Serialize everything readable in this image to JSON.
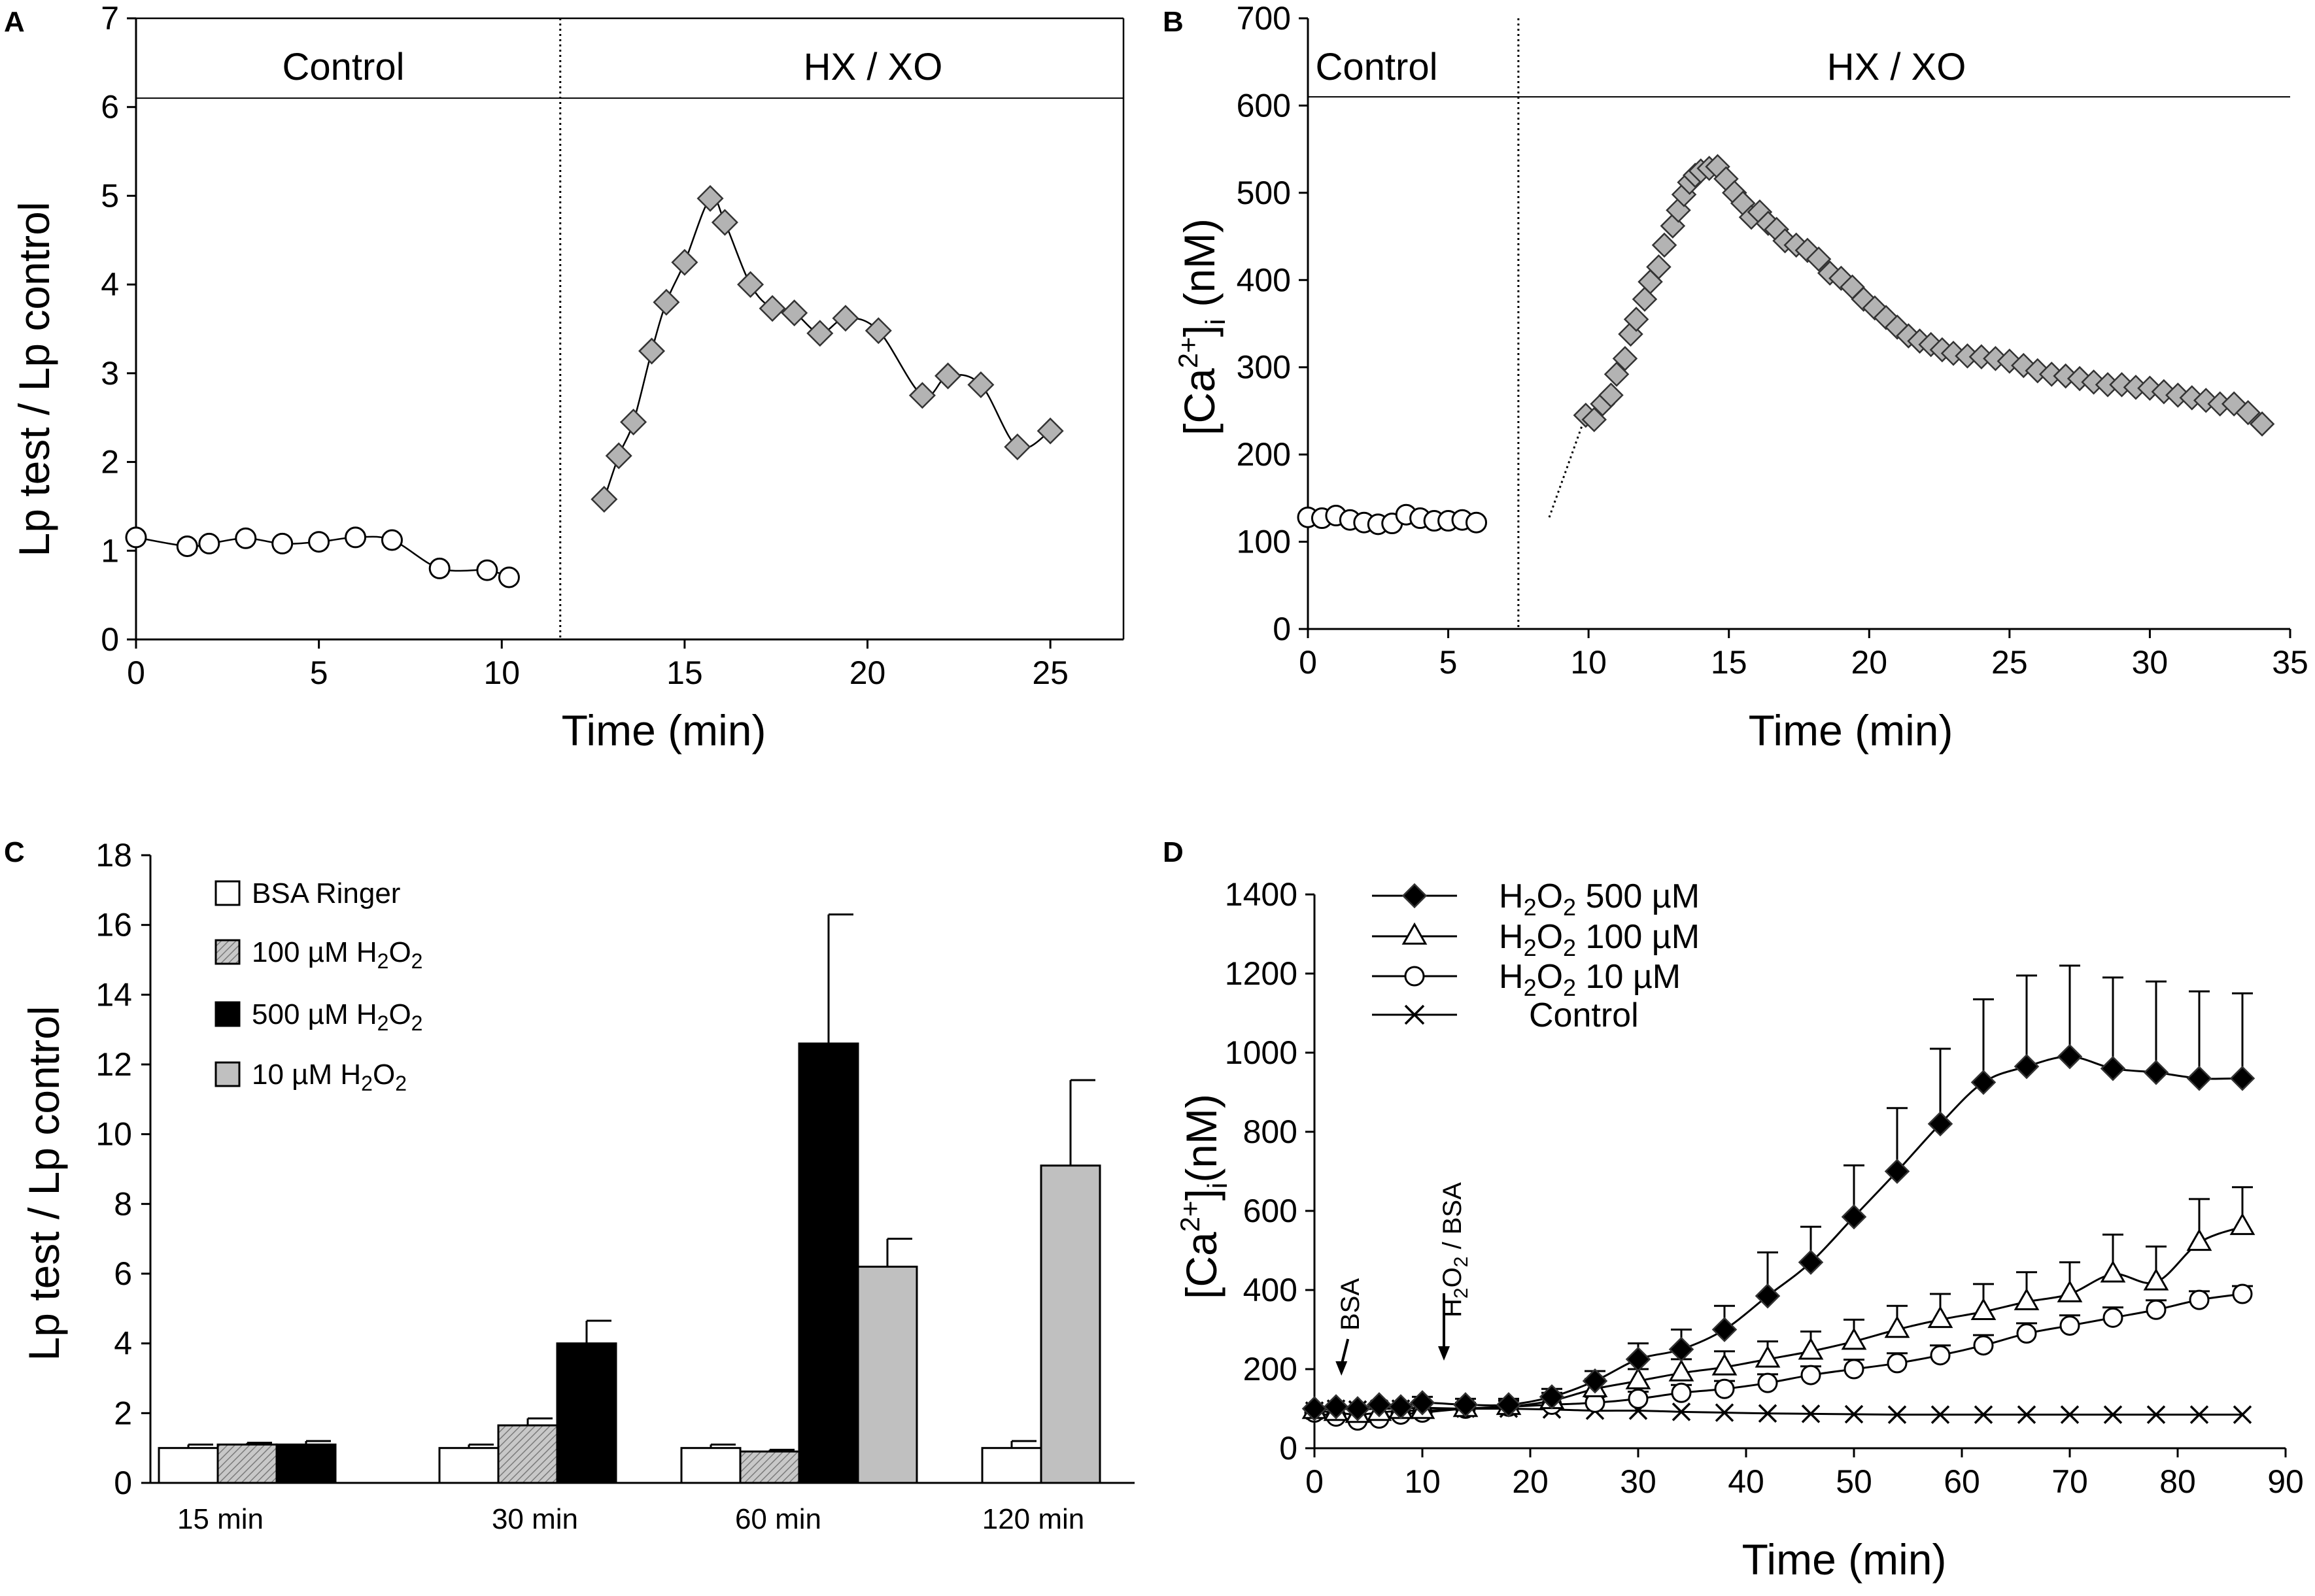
{
  "chart_data": [
    {
      "id": "A",
      "panel": "A",
      "type": "line",
      "xlabel": "Time (min)",
      "ylabel": "Lp test / Lp control",
      "xlim": [
        0,
        27
      ],
      "ylim": [
        0,
        7
      ],
      "xticks": [
        0,
        5,
        10,
        15,
        20,
        25
      ],
      "yticks": [
        0,
        1,
        2,
        3,
        4,
        5,
        6,
        7
      ],
      "divider_x": 11.6,
      "band_y": 6.1,
      "band_labels": {
        "left": "Control",
        "right": "HX / XO"
      },
      "series": [
        {
          "name": "Control",
          "marker": "circle",
          "x": [
            0,
            1.4,
            2,
            3,
            4,
            5,
            6,
            7,
            8.3,
            9.6,
            10.2
          ],
          "y": [
            1.15,
            1.05,
            1.08,
            1.14,
            1.08,
            1.1,
            1.15,
            1.12,
            0.8,
            0.78,
            0.7
          ]
        },
        {
          "name": "HX / XO",
          "marker": "diamond",
          "x": [
            12.8,
            13.2,
            13.6,
            14.1,
            14.5,
            15,
            15.7,
            16.1,
            16.8,
            17.4,
            18,
            18.7,
            19.4,
            20.3,
            21.5,
            22.2,
            23.1,
            24.1,
            25
          ],
          "y": [
            1.58,
            2.07,
            2.45,
            3.25,
            3.8,
            4.25,
            4.97,
            4.7,
            4.0,
            3.73,
            3.68,
            3.45,
            3.62,
            3.48,
            2.75,
            2.97,
            2.87,
            2.17,
            2.35
          ]
        }
      ]
    },
    {
      "id": "B",
      "panel": "B",
      "type": "line",
      "xlabel": "Time (min)",
      "ylabel_main": "[Ca",
      "ylabel_sup": "2+",
      "ylabel_close": "]",
      "ylabel_sub": "i",
      "ylabel_unit": "(nM)",
      "xlim": [
        0,
        35
      ],
      "ylim": [
        0,
        700
      ],
      "xticks": [
        0,
        5,
        10,
        15,
        20,
        25,
        30,
        35
      ],
      "yticks": [
        0,
        100,
        200,
        300,
        400,
        500,
        600,
        700
      ],
      "divider_x": 7.5,
      "band_y": 610,
      "band_labels": {
        "left": "Control",
        "right": "HX / XO"
      },
      "dotted_segment": {
        "x": [
          8.6,
          9.9
        ],
        "y": [
          128,
          245
        ]
      },
      "series": [
        {
          "name": "Control",
          "marker": "circle",
          "x": [
            0,
            0.5,
            1,
            1.5,
            2,
            2.5,
            3,
            3.5,
            4,
            4.5,
            5,
            5.5,
            6
          ],
          "y": [
            128,
            127,
            130,
            125,
            122,
            120,
            121,
            131,
            127,
            124,
            124,
            125,
            122
          ]
        },
        {
          "name": "HX / XO",
          "marker": "diamond",
          "x": [
            9.9,
            10.2,
            10.5,
            10.8,
            11.0,
            11.3,
            11.5,
            11.7,
            12.0,
            12.2,
            12.5,
            12.7,
            13.0,
            13.2,
            13.4,
            13.6,
            13.8,
            14.0,
            14.3,
            14.6,
            14.9,
            15.2,
            15.5,
            15.8,
            16.1,
            16.4,
            16.7,
            17.0,
            17.4,
            17.8,
            18.2,
            18.6,
            19.0,
            19.4,
            19.8,
            20.2,
            20.6,
            21.0,
            21.4,
            21.8,
            22.2,
            22.6,
            23.0,
            23.5,
            24.0,
            24.5,
            25.0,
            25.5,
            26.0,
            26.5,
            27.0,
            27.5,
            28.0,
            28.5,
            29.0,
            29.5,
            30.0,
            30.5,
            31.0,
            31.5,
            32.0,
            32.5,
            33.0,
            33.5,
            34.0
          ],
          "y": [
            245,
            240,
            258,
            268,
            292,
            310,
            338,
            355,
            378,
            398,
            415,
            440,
            462,
            480,
            498,
            512,
            520,
            525,
            528,
            530,
            516,
            500,
            488,
            472,
            478,
            465,
            458,
            445,
            440,
            434,
            424,
            408,
            402,
            392,
            378,
            368,
            357,
            346,
            336,
            330,
            326,
            320,
            316,
            313,
            312,
            310,
            307,
            302,
            296,
            292,
            290,
            287,
            283,
            280,
            280,
            277,
            276,
            272,
            268,
            265,
            262,
            258,
            258,
            248,
            235
          ]
        }
      ]
    },
    {
      "id": "C",
      "panel": "C",
      "type": "bar",
      "ylabel": "Lp test / Lp control",
      "ylim": [
        0,
        18
      ],
      "yticks": [
        0,
        2,
        4,
        6,
        8,
        10,
        12,
        14,
        16,
        18
      ],
      "categories": [
        "15 min",
        "30 min",
        "60 min",
        "120 min"
      ],
      "series": [
        {
          "name": "BSA Ringer",
          "label_main": "BSA Ringer",
          "label_sub": "",
          "fill": "#ffffff",
          "values": [
            1.0,
            1.0,
            1.0,
            1.0
          ],
          "errors": [
            0.1,
            0.1,
            0.1,
            0.2
          ]
        },
        {
          "name": "100 µM H2O2",
          "label_main": "100 µM H",
          "label_sub": "2",
          "label_mid": "O",
          "label_sub2": "2",
          "fill": "hatch",
          "values": [
            1.1,
            1.65,
            0.9,
            null
          ],
          "errors": [
            0.05,
            0.2,
            0.05,
            null
          ]
        },
        {
          "name": "500 µM H2O2",
          "label_main": "500 µM H",
          "label_sub": "2",
          "label_mid": "O",
          "label_sub2": "2",
          "fill": "#000000",
          "values": [
            1.1,
            4.0,
            12.6,
            null
          ],
          "errors": [
            0.1,
            0.65,
            3.7,
            null
          ]
        },
        {
          "name": "10 µM H2O2",
          "label_main": "10 µM H",
          "label_sub": "2",
          "label_mid": "O",
          "label_sub2": "2",
          "fill": "#c0c0c0",
          "values": [
            null,
            null,
            6.2,
            9.1
          ],
          "errors": [
            null,
            null,
            0.8,
            2.45
          ]
        }
      ]
    },
    {
      "id": "D",
      "panel": "D",
      "type": "line",
      "xlabel": "Time (min)",
      "ylabel_main": "[Ca",
      "ylabel_sup": "2+",
      "ylabel_close": "]",
      "ylabel_sub": "i",
      "ylabel_unit": "(nM)",
      "xlim": [
        0,
        90
      ],
      "ylim": [
        0,
        1400
      ],
      "xticks": [
        0,
        10,
        20,
        30,
        40,
        50,
        60,
        70,
        80,
        90
      ],
      "yticks": [
        0,
        200,
        400,
        600,
        800,
        1000,
        1200,
        1400
      ],
      "annotations": [
        {
          "text": "BSA",
          "x": 2.5
        },
        {
          "text_main": "H",
          "text_sub": "2",
          "text_mid": "O",
          "text_sub2": "2",
          "text_rest": " / BSA",
          "x": 12
        }
      ],
      "x": [
        0,
        2,
        4,
        6,
        8,
        10,
        14,
        18,
        22,
        26,
        30,
        34,
        38,
        42,
        46,
        50,
        54,
        58,
        62,
        66,
        70,
        74,
        78,
        82,
        86
      ],
      "series": [
        {
          "name": "H2O2 500 µM",
          "label_main": "H",
          "label_sub": "2",
          "label_mid": "O",
          "label_sub2": "2",
          "label_rest": " 500 µM",
          "marker": "diamond-filled",
          "values": [
            100,
            105,
            100,
            110,
            105,
            115,
            110,
            110,
            130,
            170,
            225,
            250,
            300,
            385,
            470,
            585,
            700,
            820,
            925,
            965,
            990,
            960,
            950,
            935,
            935
          ],
          "errors": [
            10,
            10,
            10,
            10,
            10,
            15,
            15,
            15,
            20,
            25,
            40,
            50,
            60,
            110,
            90,
            130,
            160,
            190,
            210,
            230,
            230,
            230,
            230,
            220,
            215
          ]
        },
        {
          "name": "H2O2 100 µM",
          "label_main": "H",
          "label_sub": "2",
          "label_mid": "O",
          "label_sub2": "2",
          "label_rest": " 100 µM",
          "marker": "triangle",
          "values": [
            95,
            90,
            85,
            90,
            95,
            95,
            100,
            105,
            120,
            150,
            170,
            190,
            205,
            225,
            245,
            270,
            300,
            325,
            345,
            370,
            390,
            440,
            420,
            520,
            560
          ],
          "errors": [
            10,
            10,
            10,
            10,
            10,
            10,
            15,
            15,
            20,
            25,
            30,
            35,
            40,
            45,
            50,
            55,
            60,
            65,
            70,
            75,
            80,
            100,
            90,
            110,
            100
          ]
        },
        {
          "name": "H2O2 10 µM",
          "label_main": "H",
          "label_sub": "2",
          "label_mid": "O",
          "label_sub2": "2",
          "label_rest": " 10 µM",
          "marker": "circle",
          "values": [
            90,
            80,
            70,
            75,
            85,
            90,
            100,
            105,
            110,
            115,
            125,
            140,
            150,
            165,
            185,
            200,
            215,
            235,
            260,
            290,
            310,
            330,
            350,
            375,
            390
          ],
          "errors": [
            8,
            8,
            8,
            8,
            8,
            8,
            10,
            10,
            12,
            15,
            18,
            20,
            20,
            22,
            22,
            24,
            25,
            25,
            26,
            26,
            26,
            26,
            24,
            22,
            20
          ]
        },
        {
          "name": "Control",
          "label_main": "Control",
          "label_sub": "",
          "marker": "x",
          "values": [
            95,
            100,
            98,
            100,
            100,
            102,
            100,
            100,
            98,
            95,
            95,
            92,
            90,
            88,
            87,
            86,
            85,
            85,
            85,
            85,
            85,
            85,
            85,
            85,
            85
          ],
          "errors": [
            0,
            0,
            0,
            0,
            0,
            0,
            0,
            0,
            0,
            0,
            0,
            0,
            0,
            0,
            0,
            0,
            0,
            0,
            0,
            0,
            0,
            0,
            0,
            0,
            0
          ]
        }
      ]
    }
  ]
}
